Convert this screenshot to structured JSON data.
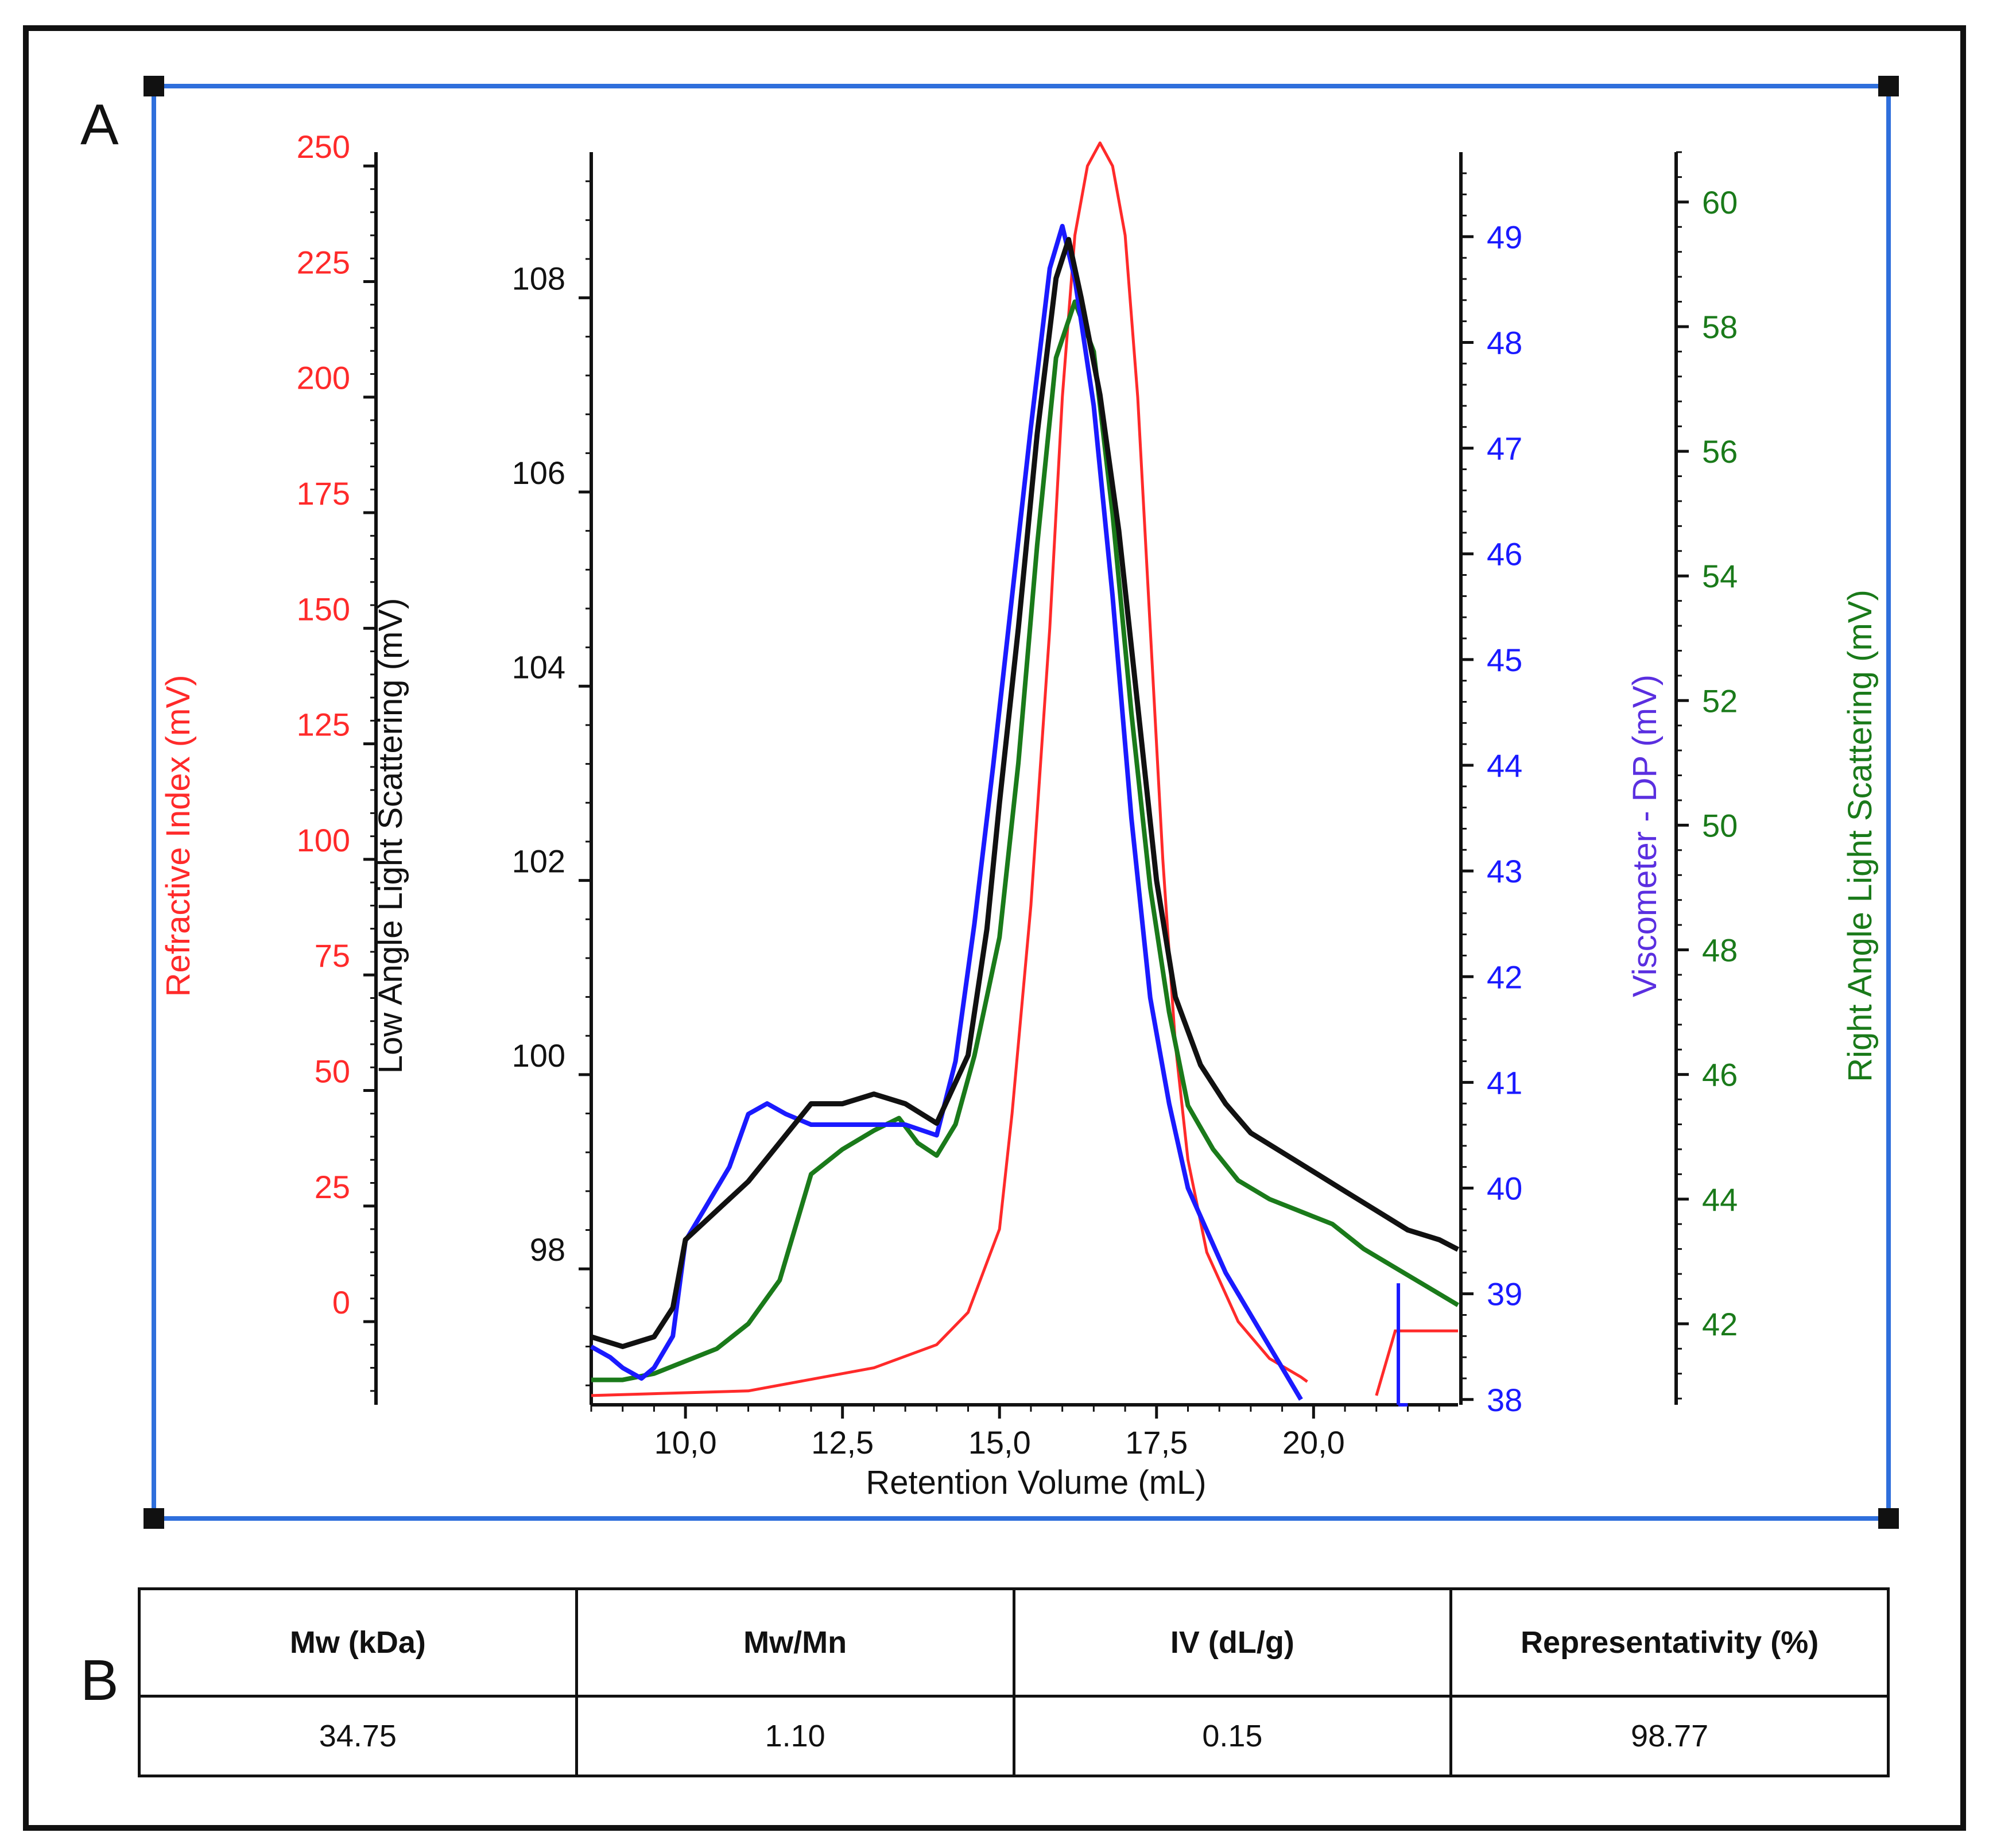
{
  "panels": {
    "a_label": "A",
    "b_label": "B"
  },
  "colors": {
    "refractive_index": "#ff2a2a",
    "low_angle_ls": "#111111",
    "viscometer": "#1a1aff",
    "right_angle_ls": "#1a7a1a",
    "frame_blue": "#2f6fdc",
    "viscometer_label": "#5a2fe0"
  },
  "chart_data": {
    "type": "line",
    "title": "",
    "xlabel": "Retention Volume (mL)",
    "xlim": [
      8.5,
      22.3
    ],
    "x_ticks": [
      10.0,
      12.5,
      15.0,
      17.5,
      20.0
    ],
    "x_tick_labels": [
      "10,0",
      "12,5",
      "15,0",
      "17,5",
      "20,0"
    ],
    "axes": {
      "refractive_index": {
        "label": "Refractive Index (mV)",
        "ylim": [
          -18,
          253
        ],
        "ticks": [
          0,
          25,
          50,
          75,
          100,
          125,
          150,
          175,
          200,
          225,
          250
        ]
      },
      "low_angle_ls": {
        "label": "Low Angle Light Scattering (mV)",
        "ylim": [
          96.6,
          109.5
        ],
        "ticks": [
          98,
          100,
          102,
          104,
          106,
          108
        ]
      },
      "viscometer": {
        "label": "Viscometer - DP (mV)",
        "ylim": [
          37.95,
          49.8
        ],
        "ticks": [
          38,
          39,
          40,
          41,
          42,
          43,
          44,
          45,
          46,
          47,
          48,
          49
        ]
      },
      "right_angle_ls": {
        "label": "Right Angle Light Scattering (mV)",
        "ylim": [
          40.7,
          60.8
        ],
        "ticks": [
          42,
          44,
          46,
          48,
          50,
          52,
          54,
          56,
          58,
          60
        ]
      }
    },
    "series": [
      {
        "name": "Refractive Index",
        "axis": "refractive_index",
        "x": [
          8.5,
          11,
          13,
          14,
          14.5,
          15,
          15.2,
          15.5,
          15.8,
          16.0,
          16.2,
          16.4,
          16.6,
          16.8,
          17.0,
          17.2,
          17.4,
          17.6,
          17.8,
          18.0,
          18.3,
          18.8,
          19.3,
          19.8,
          19.9
        ],
        "y": [
          -16,
          -15,
          -10,
          -5,
          2,
          20,
          45,
          90,
          150,
          200,
          235,
          250,
          255,
          250,
          235,
          200,
          150,
          100,
          60,
          35,
          15,
          0,
          -8,
          -12,
          -13
        ],
        "extra_x": [
          21.0,
          21.3,
          22.3
        ],
        "extra_y": [
          -16,
          -2,
          -2
        ]
      },
      {
        "name": "Low Angle Light Scattering",
        "axis": "low_angle_ls",
        "x": [
          8.5,
          9.0,
          9.5,
          9.8,
          10.0,
          10.5,
          11.0,
          11.5,
          12.0,
          12.5,
          13.0,
          13.5,
          14.0,
          14.5,
          14.8,
          15.0,
          15.3,
          15.6,
          15.9,
          16.1,
          16.3,
          16.6,
          16.9,
          17.2,
          17.5,
          17.8,
          18.2,
          18.6,
          19.0,
          19.5,
          20.0,
          20.5,
          21.0,
          21.5,
          22.0,
          22.3
        ],
        "y": [
          97.3,
          97.2,
          97.3,
          97.6,
          98.3,
          98.6,
          98.9,
          99.3,
          99.7,
          99.7,
          99.8,
          99.7,
          99.5,
          100.2,
          101.5,
          102.8,
          104.6,
          106.6,
          108.2,
          108.6,
          108.0,
          107.0,
          105.6,
          103.8,
          102.0,
          100.8,
          100.1,
          99.7,
          99.4,
          99.2,
          99.0,
          98.8,
          98.6,
          98.4,
          98.3,
          98.2
        ]
      },
      {
        "name": "Viscometer - DP",
        "axis": "viscometer",
        "x": [
          8.5,
          8.8,
          9.0,
          9.3,
          9.5,
          9.8,
          10.0,
          10.3,
          10.7,
          11.0,
          11.3,
          11.6,
          12.0,
          12.5,
          13.0,
          13.5,
          14.0,
          14.3,
          14.6,
          14.9,
          15.2,
          15.5,
          15.8,
          16.0,
          16.2,
          16.5,
          16.8,
          17.1,
          17.4,
          17.7,
          18.0,
          18.3,
          18.6,
          19.0,
          19.5,
          19.8
        ],
        "y": [
          38.5,
          38.4,
          38.3,
          38.2,
          38.3,
          38.6,
          39.5,
          39.8,
          40.2,
          40.7,
          40.8,
          40.7,
          40.6,
          40.6,
          40.6,
          40.6,
          40.5,
          41.2,
          42.5,
          44.0,
          45.6,
          47.2,
          48.7,
          49.1,
          48.6,
          47.4,
          45.6,
          43.5,
          41.8,
          40.8,
          40.0,
          39.6,
          39.2,
          38.8,
          38.3,
          38.0
        ]
      },
      {
        "name": "Right Angle Light Scattering",
        "axis": "right_angle_ls",
        "x": [
          8.5,
          9.0,
          9.5,
          10.0,
          10.5,
          11.0,
          11.5,
          12.0,
          12.5,
          13.0,
          13.4,
          13.7,
          14.0,
          14.3,
          14.6,
          15.0,
          15.3,
          15.6,
          15.9,
          16.2,
          16.5,
          16.8,
          17.1,
          17.4,
          17.7,
          18.0,
          18.4,
          18.8,
          19.3,
          19.8,
          20.3,
          20.8,
          21.3,
          21.8,
          22.3
        ],
        "y": [
          41.1,
          41.1,
          41.2,
          41.4,
          41.6,
          42.0,
          42.7,
          44.4,
          44.8,
          45.1,
          45.3,
          44.9,
          44.7,
          45.2,
          46.3,
          48.2,
          51.0,
          54.5,
          57.5,
          58.4,
          57.6,
          55.0,
          51.8,
          49.0,
          47.0,
          45.5,
          44.8,
          44.3,
          44.0,
          43.8,
          43.6,
          43.2,
          42.9,
          42.6,
          42.3
        ]
      }
    ]
  },
  "table": {
    "headers": [
      "Mw (kDa)",
      "Mw/Mn",
      "IV (dL/g)",
      "Representativity (%)"
    ],
    "rows": [
      [
        "34.75",
        "1.10",
        "0.15",
        "98.77"
      ]
    ]
  }
}
